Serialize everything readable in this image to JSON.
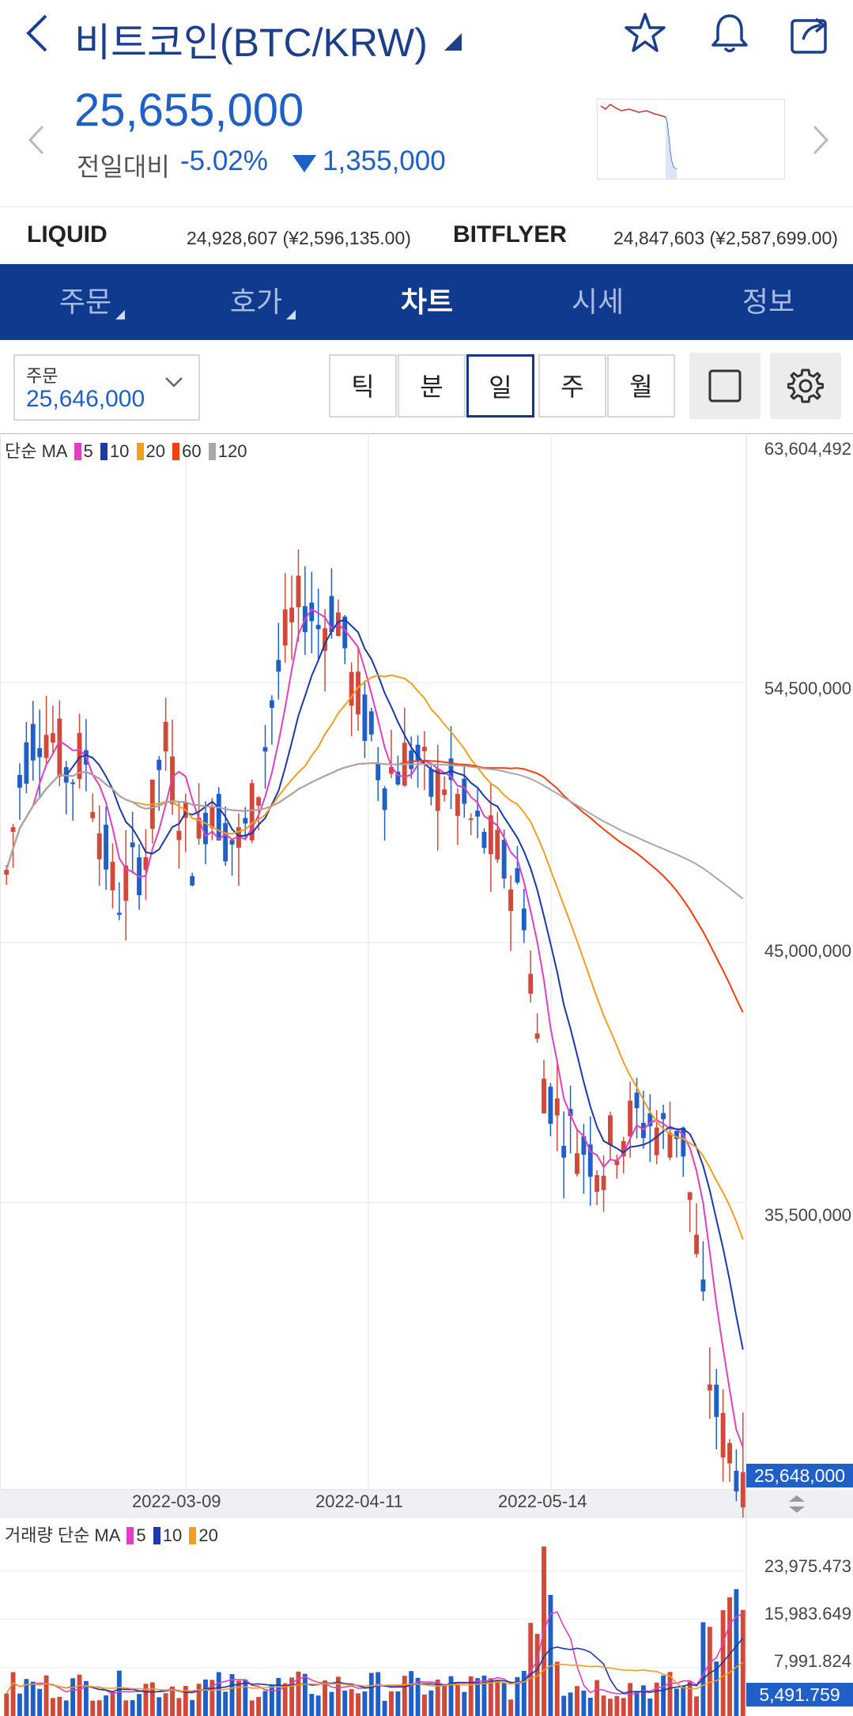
{
  "header": {
    "title": "비트코인(BTC/KRW)",
    "price": "25,655,000",
    "compare_label": "전일대비",
    "compare_pct": "-5.02%",
    "compare_amount": "1,355,000",
    "accent_color": "#1f5fc8",
    "brand_color": "#0f3a8e"
  },
  "exchanges": [
    {
      "name": "LIQUID",
      "value": "24,928,607 (¥2,596,135.00)"
    },
    {
      "name": "BITFLYER",
      "value": "24,847,603 (¥2,587,699.00)"
    }
  ],
  "tabs": [
    {
      "label": "주문",
      "has_menu": true
    },
    {
      "label": "호가",
      "has_menu": true
    },
    {
      "label": "차트",
      "active": true
    },
    {
      "label": "시세"
    },
    {
      "label": "정보"
    }
  ],
  "order": {
    "label": "주문",
    "value": "25,646,000"
  },
  "periods": [
    "틱",
    "분",
    "일",
    "주",
    "월"
  ],
  "active_period": "일",
  "icons": [
    "back-icon",
    "star-icon",
    "bell-icon",
    "share-icon",
    "chevron-left-icon",
    "chevron-right-icon",
    "square-icon",
    "gear-icon"
  ],
  "chart": {
    "ma_title": "단순 MA",
    "ma_items": [
      {
        "label": "5",
        "color": "#e040c0"
      },
      {
        "label": "10",
        "color": "#1a3aa8"
      },
      {
        "label": "20",
        "color": "#f0a020"
      },
      {
        "label": "60",
        "color": "#f04010"
      },
      {
        "label": "120",
        "color": "#a8a8a8"
      }
    ],
    "y_labels": [
      "63,604,492",
      "54,500,000",
      "45,000,000",
      "35,500,000"
    ],
    "x_labels": [
      "2022-03-09",
      "2022-04-11",
      "2022-05-14"
    ],
    "current_price": "25,648,000",
    "volume_title": "거래량 단순 MA",
    "volume_ma_items": [
      {
        "label": "5",
        "color": "#e040c0"
      },
      {
        "label": "10",
        "color": "#1a3aa8"
      },
      {
        "label": "20",
        "color": "#f0a020"
      }
    ],
    "volume_labels": [
      "23,975.473",
      "15,983.649",
      "7,991.824"
    ],
    "current_volume": "5,491.759"
  },
  "chart_data": {
    "type": "candlestick",
    "y_range": [
      25000000,
      63604492
    ],
    "x_dates_labeled": [
      "2022-03-09",
      "2022-04-11",
      "2022-05-14"
    ],
    "close_approx_path": [
      47500000,
      51500000,
      53000000,
      52500000,
      51000000,
      52000000,
      49000000,
      46500000,
      47500000,
      48500000,
      52500000,
      50000000,
      48000000,
      50500000,
      49000000,
      48500000,
      50500000,
      54000000,
      56500000,
      57500000,
      56500000,
      57500000,
      54500000,
      53000000,
      51000000,
      51500000,
      52000000,
      50500000,
      51000000,
      50000000,
      49000000,
      48500000,
      47500000,
      46500000,
      40500000,
      39000000,
      38000000,
      37500000,
      37000000,
      38000000,
      38500000,
      38500000,
      38000000,
      38500000,
      34000000,
      28500000,
      26500000,
      25648000
    ],
    "volume_range": [
      0,
      29000
    ]
  }
}
